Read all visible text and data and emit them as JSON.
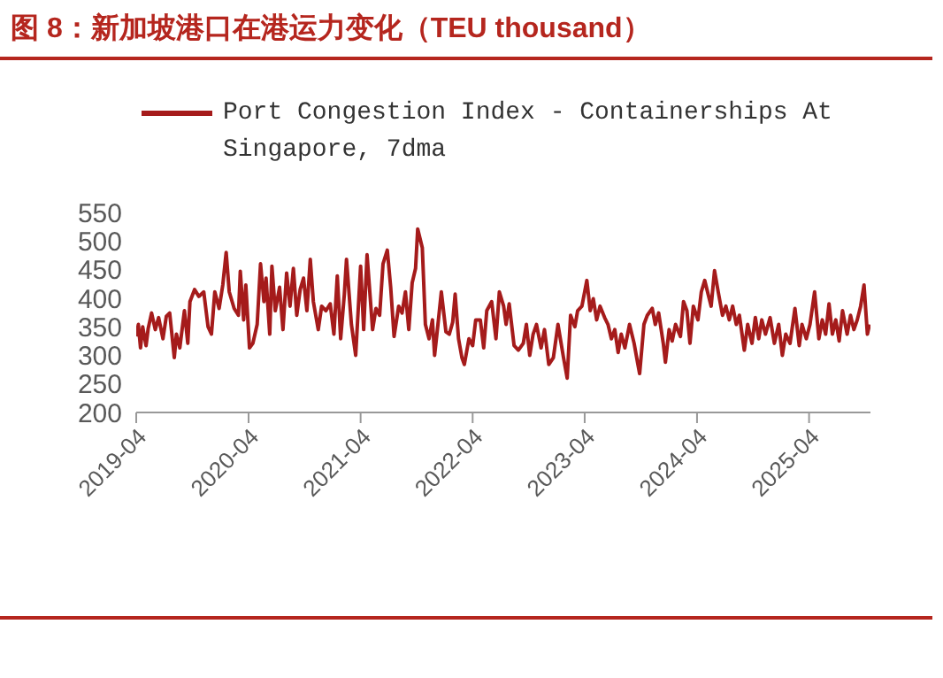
{
  "chart_data": {
    "type": "line",
    "title": "图 8：新加坡港口在港运力变化（TEU thousand）",
    "x": [
      "2019-04-01",
      "2019-04-08",
      "2019-04-15",
      "2019-04-22",
      "2019-05-03",
      "2019-05-10",
      "2019-05-21",
      "2019-06-02",
      "2019-06-13",
      "2019-06-27",
      "2019-07-08",
      "2019-07-19",
      "2019-08-03",
      "2019-08-10",
      "2019-08-21",
      "2019-09-05",
      "2019-09-16",
      "2019-09-23",
      "2019-10-08",
      "2019-10-22",
      "2019-11-07",
      "2019-11-21",
      "2019-12-02",
      "2019-12-13",
      "2019-12-27",
      "2020-01-08",
      "2020-01-19",
      "2020-01-29",
      "2020-02-14",
      "2020-02-28",
      "2020-03-05",
      "2020-03-16",
      "2020-03-23",
      "2020-04-04",
      "2020-04-15",
      "2020-04-29",
      "2020-05-10",
      "2020-05-21",
      "2020-05-28",
      "2020-06-09",
      "2020-06-16",
      "2020-06-27",
      "2020-07-11",
      "2020-07-22",
      "2020-08-03",
      "2020-08-14",
      "2020-08-25",
      "2020-09-05",
      "2020-09-16",
      "2020-09-27",
      "2020-10-08",
      "2020-10-19",
      "2020-10-29",
      "2020-11-14",
      "2020-11-25",
      "2020-12-09",
      "2020-12-23",
      "2021-01-04",
      "2021-01-15",
      "2021-01-26",
      "2021-02-07",
      "2021-02-14",
      "2021-03-02",
      "2021-03-16",
      "2021-04-01",
      "2021-04-11",
      "2021-04-22",
      "2021-05-10",
      "2021-05-21",
      "2021-06-02",
      "2021-06-13",
      "2021-06-27",
      "2021-07-08",
      "2021-07-19",
      "2021-08-03",
      "2021-08-14",
      "2021-08-25",
      "2021-09-05",
      "2021-09-16",
      "2021-09-27",
      "2021-10-04",
      "2021-10-19",
      "2021-10-29",
      "2021-11-10",
      "2021-11-21",
      "2021-11-28",
      "2021-12-09",
      "2021-12-20",
      "2022-01-04",
      "2022-01-15",
      "2022-01-26",
      "2022-02-03",
      "2022-02-14",
      "2022-02-25",
      "2022-03-05",
      "2022-03-20",
      "2022-04-01",
      "2022-04-11",
      "2022-04-26",
      "2022-05-07",
      "2022-05-17",
      "2022-06-02",
      "2022-06-16",
      "2022-06-27",
      "2022-07-11",
      "2022-07-19",
      "2022-07-29",
      "2022-08-14",
      "2022-08-28",
      "2022-09-13",
      "2022-09-23",
      "2022-10-04",
      "2022-10-15",
      "2022-10-26",
      "2022-11-10",
      "2022-11-21",
      "2022-12-05",
      "2022-12-20",
      "2023-01-04",
      "2023-01-22",
      "2023-02-03",
      "2023-02-14",
      "2023-02-28",
      "2023-03-09",
      "2023-03-23",
      "2023-04-08",
      "2023-04-19",
      "2023-04-29",
      "2023-05-10",
      "2023-05-21",
      "2023-06-05",
      "2023-06-16",
      "2023-06-27",
      "2023-07-08",
      "2023-07-19",
      "2023-07-29",
      "2023-08-10",
      "2023-08-25",
      "2023-09-09",
      "2023-09-20",
      "2023-09-27",
      "2023-10-11",
      "2023-10-22",
      "2023-11-07",
      "2023-11-17",
      "2023-11-28",
      "2023-12-13",
      "2023-12-20",
      "2024-01-01",
      "2024-01-11",
      "2024-01-22",
      "2024-02-07",
      "2024-02-17",
      "2024-02-28",
      "2024-03-09",
      "2024-03-20",
      "2024-04-04",
      "2024-04-15",
      "2024-04-26",
      "2024-05-07",
      "2024-05-17",
      "2024-05-28",
      "2024-06-09",
      "2024-06-23",
      "2024-07-04",
      "2024-07-15",
      "2024-07-26",
      "2024-08-07",
      "2024-08-17",
      "2024-09-02",
      "2024-09-13",
      "2024-09-27",
      "2024-10-08",
      "2024-10-19",
      "2024-10-29",
      "2024-11-10",
      "2024-11-25",
      "2024-12-09",
      "2024-12-23",
      "2025-01-04",
      "2025-01-15",
      "2025-01-29",
      "2025-02-14",
      "2025-02-28",
      "2025-03-09",
      "2025-03-23",
      "2025-04-04",
      "2025-04-19",
      "2025-05-03",
      "2025-05-14",
      "2025-05-25",
      "2025-06-05",
      "2025-06-16",
      "2025-06-27",
      "2025-07-08",
      "2025-07-19",
      "2025-08-03",
      "2025-08-14",
      "2025-08-25",
      "2025-09-05",
      "2025-09-16",
      "2025-09-27",
      "2025-10-08",
      "2025-10-15"
    ],
    "series": [
      {
        "name": "Port Congestion Index - Containerships At Singapore, 7dma",
        "color": "#a51b1b",
        "values": [
          333,
          354,
          313,
          350,
          317,
          347,
          374,
          345,
          366,
          329,
          368,
          374,
          296,
          337,
          313,
          378,
          321,
          394,
          415,
          403,
          411,
          350,
          337,
          411,
          382,
          423,
          480,
          411,
          382,
          370,
          447,
          362,
          423,
          313,
          321,
          354,
          460,
          394,
          435,
          337,
          456,
          378,
          419,
          345,
          444,
          386,
          452,
          370,
          415,
          435,
          378,
          468,
          394,
          345,
          386,
          378,
          390,
          337,
          439,
          329,
          407,
          468,
          354,
          300,
          456,
          345,
          476,
          345,
          382,
          370,
          460,
          484,
          419,
          333,
          386,
          374,
          411,
          345,
          427,
          452,
          521,
          488,
          354,
          329,
          362,
          300,
          354,
          411,
          341,
          337,
          358,
          407,
          329,
          296,
          284,
          329,
          317,
          362,
          362,
          313,
          378,
          394,
          329,
          411,
          386,
          354,
          390,
          317,
          309,
          321,
          354,
          300,
          337,
          354,
          313,
          345,
          284,
          296,
          354,
          296,
          260,
          370,
          350,
          378,
          386,
          431,
          378,
          399,
          362,
          386,
          366,
          354,
          329,
          345,
          305,
          337,
          313,
          354,
          321,
          288,
          268,
          354,
          370,
          382,
          354,
          374,
          321,
          288,
          345,
          325,
          354,
          333,
          394,
          378,
          321,
          386,
          362,
          411,
          431,
          407,
          386,
          448,
          411,
          370,
          386,
          362,
          386,
          354,
          370,
          309,
          354,
          321,
          366,
          329,
          362,
          337,
          366,
          321,
          354,
          300,
          337,
          321,
          382,
          317,
          354,
          329,
          354,
          411,
          329,
          362,
          337,
          390,
          337,
          362,
          325,
          378,
          337,
          370,
          345,
          362,
          386,
          423,
          337,
          354
        ]
      }
    ],
    "xlim": [
      "2019-04-01",
      "2025-10-18"
    ],
    "xticks": [
      "2019-04",
      "2020-04",
      "2021-04",
      "2022-04",
      "2023-04",
      "2024-04",
      "2025-04"
    ],
    "ylim": [
      200,
      550
    ],
    "yticks": [
      200,
      250,
      300,
      350,
      400,
      450,
      500,
      550
    ],
    "legend": "top",
    "marker": "none",
    "line_style": "solid"
  }
}
